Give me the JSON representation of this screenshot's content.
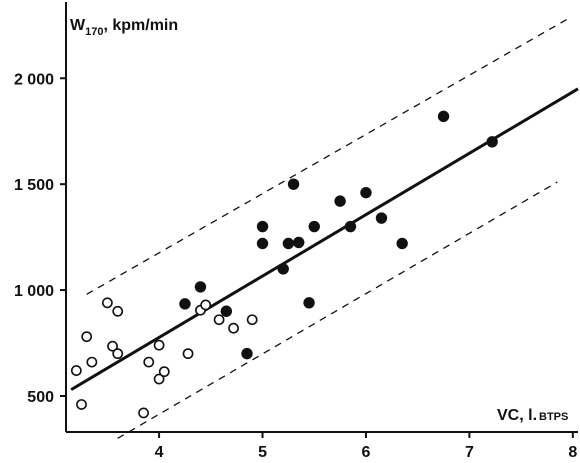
{
  "chart_data": {
    "type": "scatter",
    "title": "",
    "ylabel": {
      "main": "W",
      "subscript": "170",
      "rest": ", kpm/min"
    },
    "xlabel": {
      "main": "VC, l.",
      "small": "BTPS"
    },
    "xlim": [
      3.1,
      8.05
    ],
    "ylim": [
      330,
      2360
    ],
    "x_ticks": [
      4,
      5,
      6,
      7,
      8
    ],
    "x_tick_labels": [
      "4",
      "5",
      "6",
      "7",
      "8"
    ],
    "y_ticks": [
      500,
      1000,
      1500,
      2000
    ],
    "y_tick_labels": [
      "500",
      "1 000",
      "1 500",
      "2 000"
    ],
    "grid": false,
    "legend": "none",
    "series": [
      {
        "marker": "filled-circle",
        "points": [
          [
            4.25,
            935
          ],
          [
            4.4,
            1015
          ],
          [
            4.65,
            900
          ],
          [
            4.85,
            700
          ],
          [
            5.0,
            1300
          ],
          [
            5.0,
            1220
          ],
          [
            5.2,
            1100
          ],
          [
            5.25,
            1220
          ],
          [
            5.3,
            1500
          ],
          [
            5.35,
            1225
          ],
          [
            5.45,
            940
          ],
          [
            5.5,
            1300
          ],
          [
            5.75,
            1420
          ],
          [
            5.85,
            1300
          ],
          [
            6.0,
            1460
          ],
          [
            6.15,
            1340
          ],
          [
            6.35,
            1220
          ],
          [
            6.75,
            1820
          ],
          [
            7.22,
            1700
          ]
        ]
      },
      {
        "marker": "open-circle",
        "points": [
          [
            3.2,
            620
          ],
          [
            3.25,
            460
          ],
          [
            3.3,
            780
          ],
          [
            3.35,
            660
          ],
          [
            3.5,
            940
          ],
          [
            3.55,
            735
          ],
          [
            3.6,
            700
          ],
          [
            3.6,
            900
          ],
          [
            3.85,
            420
          ],
          [
            3.9,
            660
          ],
          [
            4.0,
            740
          ],
          [
            4.0,
            580
          ],
          [
            4.05,
            615
          ],
          [
            4.28,
            700
          ],
          [
            4.4,
            905
          ],
          [
            4.45,
            930
          ],
          [
            4.58,
            860
          ],
          [
            4.72,
            820
          ],
          [
            4.9,
            860
          ]
        ]
      }
    ],
    "lines": [
      {
        "style": "solid",
        "from": [
          3.15,
          530
        ],
        "to": [
          8.05,
          1950
        ]
      },
      {
        "style": "dashed",
        "from": [
          3.3,
          980
        ],
        "to": [
          7.95,
          2280
        ]
      },
      {
        "style": "dashed",
        "from": [
          3.6,
          300
        ],
        "to": [
          7.85,
          1510
        ]
      }
    ]
  }
}
